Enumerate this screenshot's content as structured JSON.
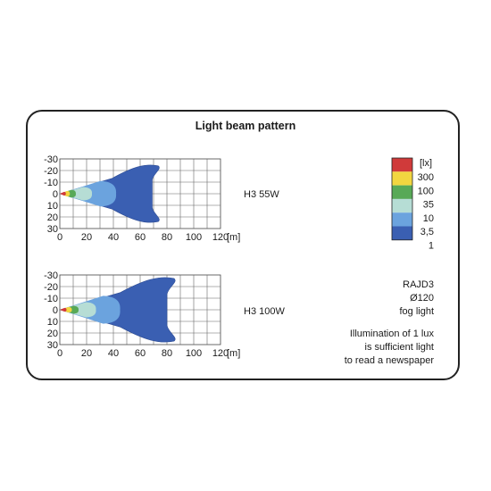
{
  "title": "Light beam pattern",
  "y_ticks": [
    "-30",
    "-20",
    "-10",
    "0",
    "10",
    "20",
    "30"
  ],
  "x_ticks": [
    "0",
    "20",
    "40",
    "60",
    "80",
    "100",
    "120"
  ],
  "x_unit": "[m]",
  "legend": {
    "unit": "[lx]",
    "levels": [
      "300",
      "100",
      "35",
      "10",
      "3,5",
      "1"
    ],
    "colors": [
      "#d03a3a",
      "#f2d640",
      "#58a957",
      "#b6ddd5",
      "#6ba3de",
      "#3a5fb2"
    ]
  },
  "charts": [
    {
      "label": "H3 55W",
      "reach_m": 75
    },
    {
      "label": "H3 100W",
      "reach_m": 87
    }
  ],
  "model": {
    "name": "RAJD3",
    "diameter": "Ø120",
    "type": "fog light"
  },
  "note": [
    "Illumination of 1 lux",
    "is sufficient light",
    "to read a newspaper"
  ]
}
